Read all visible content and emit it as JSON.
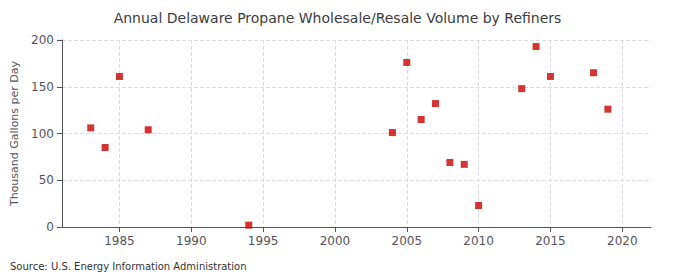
{
  "chart_data": {
    "type": "scatter",
    "title": "Annual Delaware Propane Wholesale/Resale Volume by Refiners",
    "ylabel": "Thousand Gallons per Day",
    "source": "Source: U.S. Energy Information Administration",
    "x": [
      1983,
      1984,
      1985,
      1987,
      1994,
      2004,
      2005,
      2006,
      2007,
      2008,
      2009,
      2010,
      2013,
      2014,
      2015,
      2018,
      2019
    ],
    "values": [
      106,
      85,
      161,
      104,
      2,
      101,
      176,
      115,
      132,
      69,
      67,
      23,
      148,
      193,
      161,
      165,
      126
    ],
    "color": "#CC0000",
    "marker": "square",
    "xlim": [
      1981,
      2022
    ],
    "ylim": [
      0,
      200
    ],
    "xticks": [
      1985,
      1990,
      1995,
      2000,
      2005,
      2010,
      2015,
      2020
    ],
    "yticks": [
      0,
      50,
      100,
      150,
      200
    ],
    "grid": true
  }
}
